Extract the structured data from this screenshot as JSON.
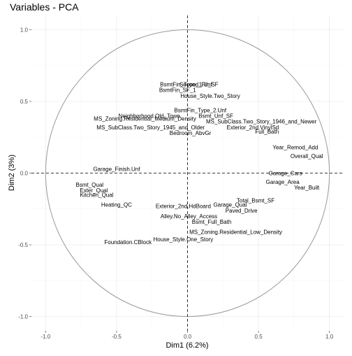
{
  "chart_data": {
    "type": "scatter",
    "title": "Variables - PCA",
    "xlabel": "Dim1 (6.2%)",
    "ylabel": "Dim2 (3%)",
    "xlim": [
      -1.1,
      1.1
    ],
    "ylim": [
      -1.1,
      1.1
    ],
    "xticks": [
      "-1.0",
      "-0.5",
      "0.0",
      "0.5",
      "1.0"
    ],
    "yticks": [
      "-1.0",
      "-0.5",
      "0.0",
      "0.5",
      "1.0"
    ],
    "grid": true,
    "reference_lines": "dashed lines at x = 0 and y = 0",
    "unit_circle": true,
    "points": [
      {
        "label": "Second_Flr_SF",
        "x": 0.08,
        "y": 0.62
      },
      {
        "label": "BsmtFin_Type_1.Unf",
        "x": -0.01,
        "y": 0.62
      },
      {
        "label": "BsmtFin_SF_1",
        "x": -0.07,
        "y": 0.58
      },
      {
        "label": "House_Style.Two_Story",
        "x": 0.16,
        "y": 0.54
      },
      {
        "label": "BsmtFin_Type_2.Unf",
        "x": 0.09,
        "y": 0.44
      },
      {
        "label": "Bsmt_Unf_SF",
        "x": 0.2,
        "y": 0.4
      },
      {
        "label": "Neighborhood.Old_Town",
        "x": -0.27,
        "y": 0.4
      },
      {
        "label": "MS_Zoning.Residential_Medium_Density",
        "x": -0.3,
        "y": 0.38
      },
      {
        "label": "MS_SubClass.Two_Story_1946_and_Newer",
        "x": 0.52,
        "y": 0.36
      },
      {
        "label": "MS_SubClass.Two_Story_1945_and_Older",
        "x": -0.26,
        "y": 0.32
      },
      {
        "label": "Exterior_2nd.VinylSd",
        "x": 0.46,
        "y": 0.32
      },
      {
        "label": "Full_Bath",
        "x": 0.56,
        "y": 0.29
      },
      {
        "label": "Bedroom_AbvGr",
        "x": 0.02,
        "y": 0.28
      },
      {
        "label": "Year_Remod_Add",
        "x": 0.76,
        "y": 0.18
      },
      {
        "label": "Overall_Qual",
        "x": 0.84,
        "y": 0.12
      },
      {
        "label": "Garage_Finish.Unf",
        "x": -0.5,
        "y": 0.03
      },
      {
        "label": "Garage_Cars",
        "x": 0.69,
        "y": 0.0
      },
      {
        "label": "Bsmt_Qual",
        "x": -0.69,
        "y": -0.08
      },
      {
        "label": "Exter_Qual",
        "x": -0.66,
        "y": -0.12
      },
      {
        "label": "Kitchen_Qual",
        "x": -0.64,
        "y": -0.15
      },
      {
        "label": "Year_Built",
        "x": 0.84,
        "y": -0.1
      },
      {
        "label": "Garage_Area",
        "x": 0.67,
        "y": -0.06
      },
      {
        "label": "Heating_QC",
        "x": -0.5,
        "y": -0.22
      },
      {
        "label": "Total_Bsmt_SF",
        "x": 0.48,
        "y": -0.19
      },
      {
        "label": "Garage_Qual",
        "x": 0.3,
        "y": -0.22
      },
      {
        "label": "Exterior_2nd.HdBoard",
        "x": -0.03,
        "y": -0.23
      },
      {
        "label": "Paved_Drive",
        "x": 0.38,
        "y": -0.26
      },
      {
        "label": "Alley.No_Alley_Access",
        "x": 0.01,
        "y": -0.3
      },
      {
        "label": "Bsmt_Full_Bath",
        "x": 0.17,
        "y": -0.34
      },
      {
        "label": "MS_Zoning.Residential_Low_Density",
        "x": 0.34,
        "y": -0.41
      },
      {
        "label": "House_Style.One_Story",
        "x": -0.03,
        "y": -0.46
      },
      {
        "label": "Foundation.CBlock",
        "x": -0.42,
        "y": -0.48
      }
    ]
  }
}
